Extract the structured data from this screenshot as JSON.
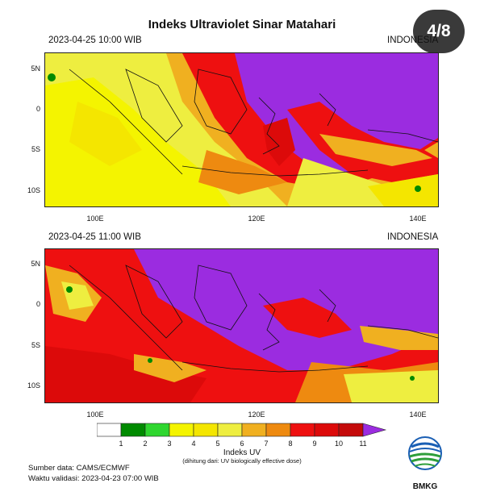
{
  "title": "Indeks Ultraviolet Sinar Matahari",
  "page_indicator": "4/8",
  "panels": [
    {
      "datetime": "2023-04-25  10:00 WIB",
      "region": "INDONESIA"
    },
    {
      "datetime": "2023-04-25  11:00 WIB",
      "region": "INDONESIA"
    }
  ],
  "lat_labels": [
    "5N",
    "0",
    "5S",
    "10S"
  ],
  "lon_labels": [
    "100E",
    "120E",
    "140E"
  ],
  "colorbar": {
    "labels": [
      "1",
      "2",
      "3",
      "4",
      "5",
      "6",
      "7",
      "8",
      "9",
      "10",
      "11"
    ],
    "colors": [
      "#ffffff",
      "#008a00",
      "#2fd62f",
      "#f4f400",
      "#f4e600",
      "#eeee40",
      "#f0b020",
      "#ee8a10",
      "#ee1010",
      "#dc0a0a",
      "#c40a0a",
      "#9b2ce0"
    ],
    "title": "Indeks UV",
    "note": "(dihitung dari: UV biologically effective dose)"
  },
  "source_line": "Sumber data: CAMS/ECMWF",
  "validity_line": "Waktu validasi: 2023-04-23 07:00 WIB",
  "logo_text": "BMKG"
}
